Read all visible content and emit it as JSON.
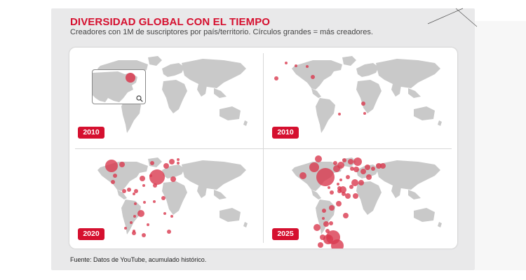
{
  "header": {
    "title": "DIVERSIDAD GLOBAL CON EL TIEMPO",
    "subtitle": "Creadores con 1M de suscriptores por país/territorio. Círculos grandes = más creadores."
  },
  "colors": {
    "accent": "#d5102f",
    "bubble": "#d93a4f",
    "land": "#c9c9c9",
    "panel_bg": "#e9e9ea"
  },
  "panels": [
    {
      "year": "2010",
      "has_zoom_inset": true,
      "zoom_icon": "magnifier-icon"
    },
    {
      "year": "2010",
      "has_zoom_inset": false
    },
    {
      "year": "2020",
      "has_zoom_inset": false
    },
    {
      "year": "2025",
      "has_zoom_inset": false
    }
  ],
  "footer": {
    "source": "Fuente: Datos de YouTube, acumulado histórico."
  }
}
